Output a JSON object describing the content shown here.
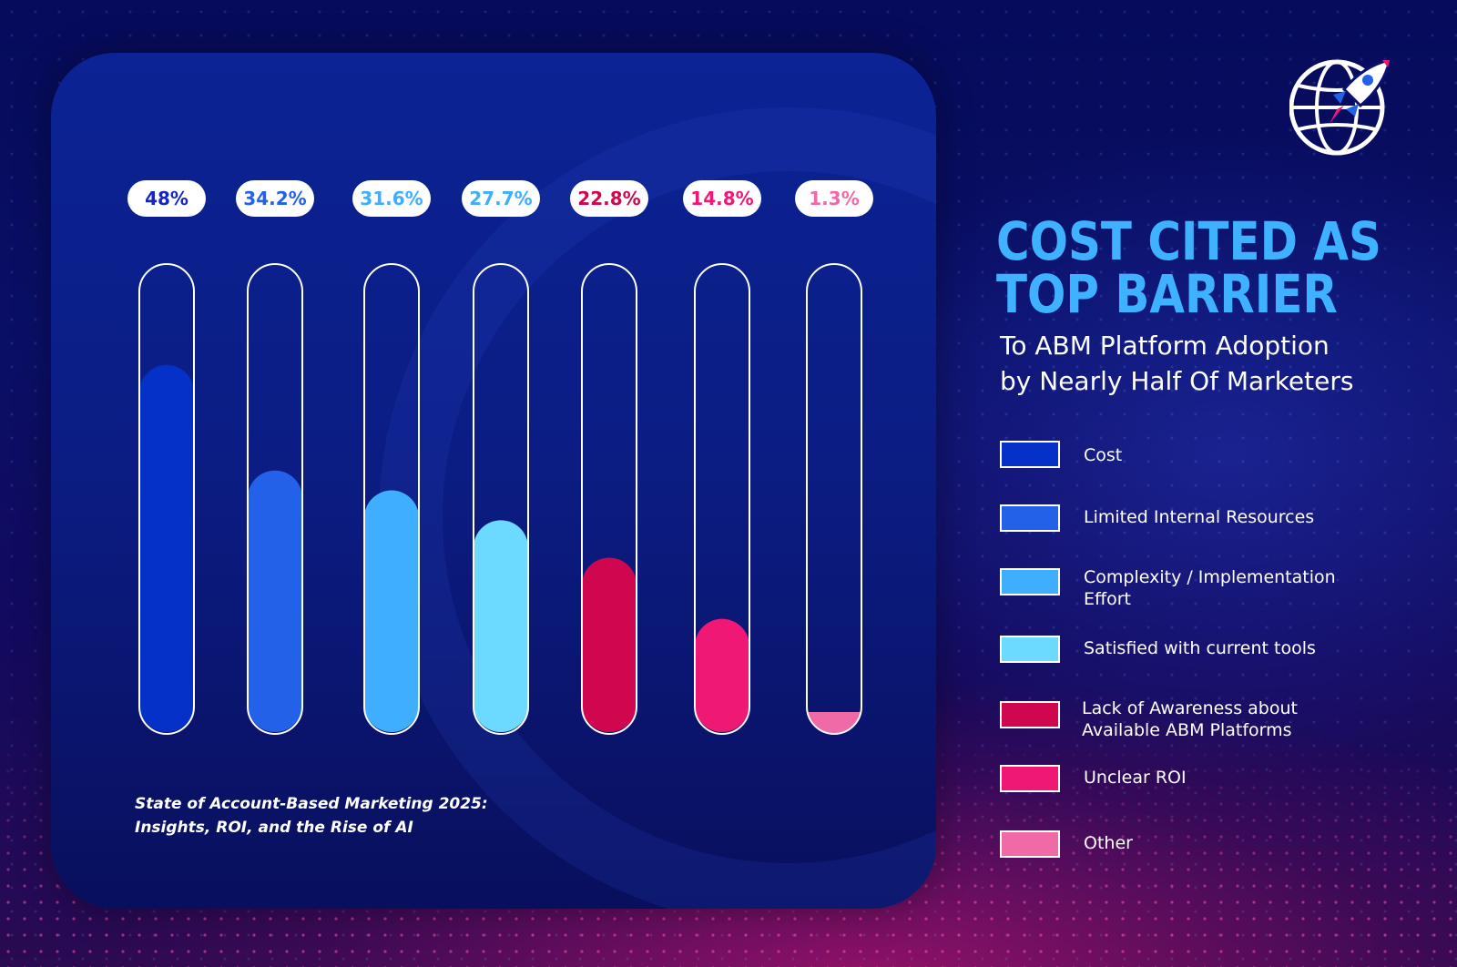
{
  "headline": {
    "line1": "COST CITED AS",
    "line2": "TOP BARRIER"
  },
  "subtitle": {
    "line1": "To ABM Platform Adoption",
    "line2": "by Nearly Half Of Marketers"
  },
  "source_note": {
    "line1": "State of Account-Based Marketing 2025:",
    "line2": "Insights, ROI, and the Rise of AI"
  },
  "logo": {
    "icon": "globe-rocket-icon"
  },
  "legend": [
    {
      "label": "Cost",
      "color": "#0531c9"
    },
    {
      "label": "Limited Internal Resources",
      "color": "#2361e8"
    },
    {
      "label": "Complexity / Implementation Effort",
      "color": "#3faeff"
    },
    {
      "label": "Satisfied with current tools",
      "color": "#6cdaff"
    },
    {
      "label": "Lack of Awareness about Available ABM Platforms",
      "color": "#d0074e"
    },
    {
      "label": "Unclear ROI",
      "color": "#f01875"
    },
    {
      "label": "Other",
      "color": "#f06aa8"
    }
  ],
  "chart_data": {
    "type": "bar",
    "title": "COST CITED AS TOP BARRIER",
    "subtitle": "To ABM Platform Adoption by Nearly Half Of Marketers",
    "categories": [
      "Cost",
      "Limited Internal Resources",
      "Complexity / Implementation Effort",
      "Satisfied with current tools",
      "Lack of Awareness about Available ABM Platforms",
      "Unclear ROI",
      "Other"
    ],
    "values": [
      48,
      34.2,
      31.6,
      27.7,
      22.8,
      14.8,
      1.3
    ],
    "data_labels": [
      "48%",
      "34.2%",
      "31.6%",
      "27.7%",
      "22.8%",
      "14.8%",
      "1.3%"
    ],
    "label_colors": [
      "#1326c4",
      "#2361e8",
      "#3faeff",
      "#3faeff",
      "#d0074e",
      "#f01875",
      "#f06aa8"
    ],
    "colors": [
      "#0531c9",
      "#2361e8",
      "#3faeff",
      "#6cdaff",
      "#d0074e",
      "#f01875",
      "#f06aa8"
    ],
    "ylim": [
      0,
      60
    ],
    "xlabel": "",
    "ylabel": "",
    "grid": false,
    "legend_position": "right"
  }
}
